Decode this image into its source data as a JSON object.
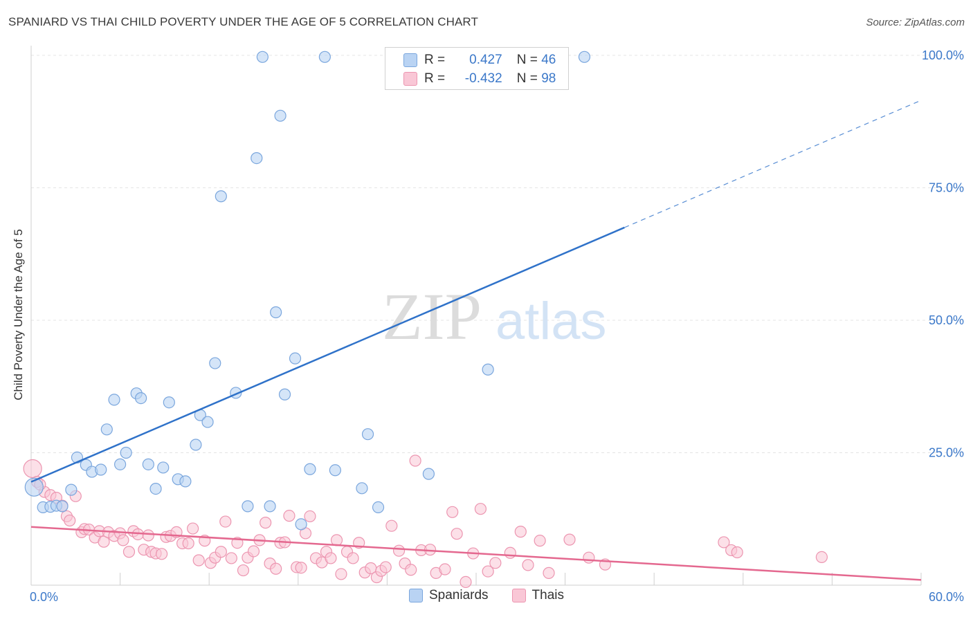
{
  "header": {
    "title": "SPANIARD VS THAI CHILD POVERTY UNDER THE AGE OF 5 CORRELATION CHART",
    "source": "Source: ZipAtlas.com"
  },
  "watermark": {
    "zip": "ZIP",
    "atlas": "atlas"
  },
  "stats": {
    "spaniards": {
      "r_label": "R =",
      "r_value": "0.427",
      "n_label": "N =",
      "n_value": "46"
    },
    "thais": {
      "r_label": "R =",
      "r_value": "-0.432",
      "n_label": "N =",
      "n_value": "98"
    }
  },
  "legend": {
    "spaniards": "Spaniards",
    "thais": "Thais"
  },
  "colors": {
    "spaniards_fill": "#b9d3f3",
    "spaniards_stroke": "#7aa6dd",
    "spaniards_line": "#2f72c9",
    "thais_fill": "#f9c7d6",
    "thais_stroke": "#ec95b0",
    "thais_line": "#e4688f",
    "tick_label": "#3b78c9"
  },
  "chart_data": {
    "type": "scatter",
    "title": "SPANIARD VS THAI CHILD POVERTY UNDER THE AGE OF 5 CORRELATION CHART",
    "xlabel": "",
    "ylabel": "Child Poverty Under the Age of 5",
    "xlim": [
      0,
      60
    ],
    "ylim": [
      0,
      100
    ],
    "x_tick_labels": [
      "0.0%",
      "60.0%"
    ],
    "y_ticks": [
      25,
      50,
      75,
      100
    ],
    "y_tick_labels": [
      "25.0%",
      "50.0%",
      "75.0%",
      "100.0%"
    ],
    "grid": true,
    "legend_position": "bottom-center",
    "series": [
      {
        "name": "Spaniards",
        "r": 0.427,
        "n": 46,
        "trend": {
          "x0": 0,
          "y0": 19.5,
          "x1": 40,
          "y1": 67.5,
          "x_dash_end": 60,
          "y_dash_end": 91.5
        },
        "points": [
          [
            0.2,
            18.5
          ],
          [
            0.8,
            14.7
          ],
          [
            1.3,
            14.8
          ],
          [
            1.7,
            15.0
          ],
          [
            2.1,
            14.9
          ],
          [
            2.7,
            18.0
          ],
          [
            3.1,
            24.1
          ],
          [
            3.7,
            22.7
          ],
          [
            4.1,
            21.4
          ],
          [
            4.7,
            21.8
          ],
          [
            5.1,
            29.4
          ],
          [
            5.6,
            35.0
          ],
          [
            6.0,
            22.8
          ],
          [
            6.4,
            25.0
          ],
          [
            7.1,
            36.2
          ],
          [
            7.4,
            35.3
          ],
          [
            7.9,
            22.8
          ],
          [
            8.4,
            18.2
          ],
          [
            8.9,
            22.2
          ],
          [
            9.3,
            34.5
          ],
          [
            9.9,
            20.0
          ],
          [
            10.4,
            19.6
          ],
          [
            11.1,
            26.5
          ],
          [
            11.4,
            32.1
          ],
          [
            11.9,
            30.8
          ],
          [
            12.4,
            41.9
          ],
          [
            12.8,
            73.4
          ],
          [
            13.8,
            36.3
          ],
          [
            14.6,
            14.9
          ],
          [
            15.2,
            80.6
          ],
          [
            15.6,
            99.7
          ],
          [
            16.1,
            14.9
          ],
          [
            16.5,
            51.5
          ],
          [
            16.8,
            88.6
          ],
          [
            17.1,
            36.0
          ],
          [
            17.8,
            42.8
          ],
          [
            18.2,
            11.5
          ],
          [
            18.8,
            21.9
          ],
          [
            19.8,
            99.7
          ],
          [
            20.5,
            21.7
          ],
          [
            22.3,
            18.3
          ],
          [
            22.7,
            28.5
          ],
          [
            23.4,
            14.7
          ],
          [
            26.8,
            21.0
          ],
          [
            30.8,
            40.7
          ],
          [
            37.3,
            99.7
          ]
        ]
      },
      {
        "name": "Thais",
        "r": -0.432,
        "n": 98,
        "trend": {
          "x0": 0,
          "y0": 11.0,
          "x1": 60,
          "y1": 1.0
        },
        "points": [
          [
            0.1,
            22.0
          ],
          [
            0.4,
            19.5
          ],
          [
            0.9,
            17.6
          ],
          [
            1.3,
            17.0
          ],
          [
            1.7,
            16.5
          ],
          [
            2.1,
            15.0
          ],
          [
            2.4,
            13.0
          ],
          [
            2.6,
            12.2
          ],
          [
            3.0,
            16.8
          ],
          [
            3.4,
            10.0
          ],
          [
            3.6,
            10.6
          ],
          [
            3.9,
            10.5
          ],
          [
            4.3,
            9.0
          ],
          [
            4.6,
            10.2
          ],
          [
            4.9,
            8.2
          ],
          [
            5.2,
            10.0
          ],
          [
            5.6,
            9.3
          ],
          [
            6.0,
            9.8
          ],
          [
            6.2,
            8.5
          ],
          [
            6.6,
            6.3
          ],
          [
            6.9,
            10.2
          ],
          [
            7.2,
            9.6
          ],
          [
            7.6,
            6.7
          ],
          [
            7.9,
            9.4
          ],
          [
            8.1,
            6.3
          ],
          [
            8.4,
            6.0
          ],
          [
            8.8,
            5.9
          ],
          [
            9.1,
            9.1
          ],
          [
            9.4,
            9.3
          ],
          [
            9.8,
            10.0
          ],
          [
            10.2,
            7.9
          ],
          [
            10.6,
            7.9
          ],
          [
            10.9,
            10.7
          ],
          [
            11.3,
            4.7
          ],
          [
            11.7,
            8.4
          ],
          [
            12.1,
            4.2
          ],
          [
            12.4,
            5.2
          ],
          [
            12.8,
            6.3
          ],
          [
            13.1,
            12.0
          ],
          [
            13.5,
            5.1
          ],
          [
            13.9,
            8.0
          ],
          [
            14.3,
            2.8
          ],
          [
            14.6,
            5.2
          ],
          [
            15.0,
            6.4
          ],
          [
            15.4,
            8.5
          ],
          [
            15.8,
            11.8
          ],
          [
            16.1,
            4.1
          ],
          [
            16.5,
            3.1
          ],
          [
            16.8,
            8.0
          ],
          [
            17.1,
            8.1
          ],
          [
            17.4,
            13.1
          ],
          [
            17.9,
            3.4
          ],
          [
            18.2,
            3.3
          ],
          [
            18.5,
            9.8
          ],
          [
            18.8,
            13.0
          ],
          [
            19.2,
            5.1
          ],
          [
            19.6,
            4.3
          ],
          [
            19.9,
            6.3
          ],
          [
            20.2,
            5.1
          ],
          [
            20.6,
            8.5
          ],
          [
            20.9,
            2.1
          ],
          [
            21.3,
            6.3
          ],
          [
            21.7,
            5.1
          ],
          [
            22.1,
            8.0
          ],
          [
            22.5,
            2.4
          ],
          [
            22.9,
            3.2
          ],
          [
            23.3,
            1.5
          ],
          [
            23.6,
            2.7
          ],
          [
            23.9,
            3.4
          ],
          [
            24.3,
            11.2
          ],
          [
            24.8,
            6.5
          ],
          [
            25.2,
            4.1
          ],
          [
            25.6,
            2.9
          ],
          [
            25.9,
            23.5
          ],
          [
            26.3,
            6.6
          ],
          [
            26.9,
            6.7
          ],
          [
            27.3,
            2.3
          ],
          [
            27.9,
            3.0
          ],
          [
            28.4,
            13.8
          ],
          [
            28.7,
            9.7
          ],
          [
            29.3,
            0.6
          ],
          [
            29.8,
            6.0
          ],
          [
            30.3,
            14.4
          ],
          [
            30.8,
            2.6
          ],
          [
            31.3,
            4.2
          ],
          [
            32.3,
            6.1
          ],
          [
            33.0,
            10.1
          ],
          [
            33.5,
            3.8
          ],
          [
            34.3,
            8.4
          ],
          [
            34.9,
            2.3
          ],
          [
            36.3,
            8.6
          ],
          [
            37.6,
            5.2
          ],
          [
            38.7,
            3.9
          ],
          [
            46.7,
            8.1
          ],
          [
            47.2,
            6.6
          ],
          [
            47.6,
            6.2
          ],
          [
            53.3,
            5.3
          ],
          [
            0.6,
            19.0
          ]
        ]
      }
    ]
  }
}
